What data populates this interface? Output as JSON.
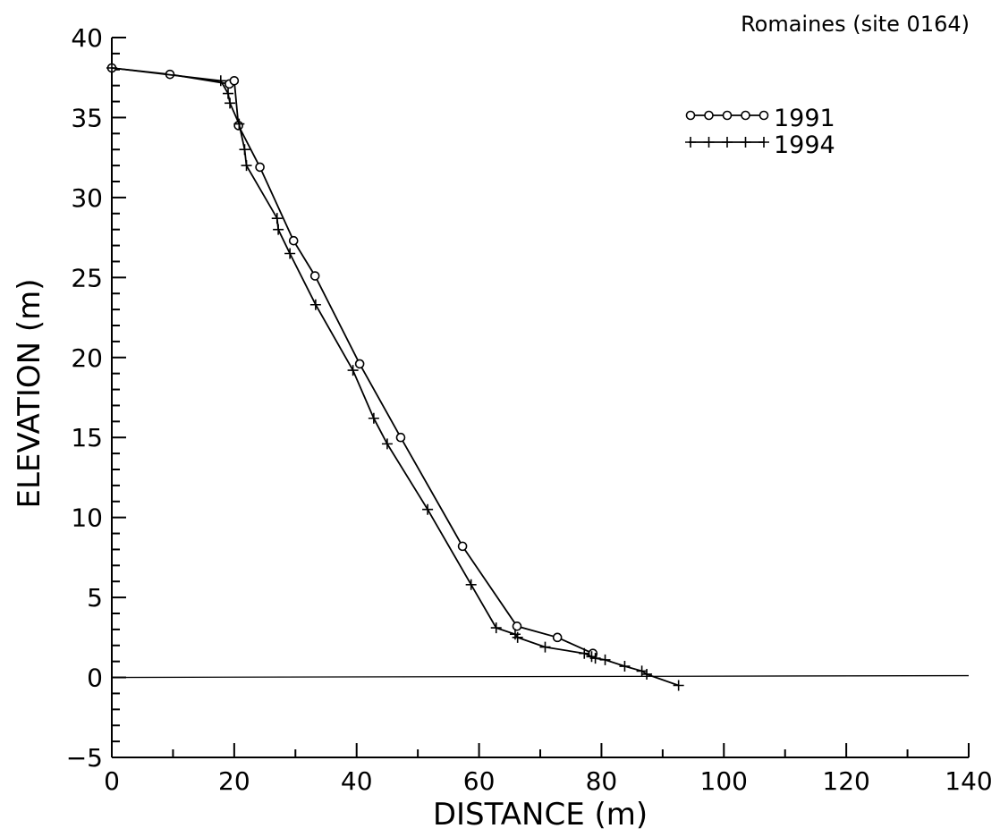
{
  "chart_data": {
    "type": "line",
    "title": "Romaines  (site  0164)",
    "xlabel": "DISTANCE  (m)",
    "ylabel": "ELEVATION  (m)",
    "xlim": [
      0,
      140
    ],
    "ylim": [
      -5,
      40
    ],
    "x_ticks": [
      0,
      20,
      40,
      60,
      80,
      100,
      120,
      140
    ],
    "y_ticks": [
      -5,
      0,
      5,
      10,
      15,
      20,
      25,
      30,
      35,
      40
    ],
    "legend_position": "top-right",
    "reference_line_y": 0,
    "series": [
      {
        "name": "1991",
        "marker": "circle",
        "points": [
          [
            0,
            38.1
          ],
          [
            9.5,
            37.7
          ],
          [
            19.2,
            37.1
          ],
          [
            20.0,
            37.3
          ],
          [
            20.7,
            34.5
          ],
          [
            24.2,
            31.9
          ],
          [
            29.7,
            27.3
          ],
          [
            33.2,
            25.1
          ],
          [
            40.5,
            19.6
          ],
          [
            47.2,
            15.0
          ],
          [
            57.3,
            8.2
          ],
          [
            66.2,
            3.2
          ],
          [
            72.8,
            2.5
          ],
          [
            78.6,
            1.5
          ]
        ]
      },
      {
        "name": "1994",
        "marker": "plus",
        "points": [
          [
            0,
            38.1
          ],
          [
            17.8,
            37.3
          ],
          [
            19.0,
            36.5
          ],
          [
            19.3,
            35.9
          ],
          [
            20.8,
            34.6
          ],
          [
            21.7,
            33.0
          ],
          [
            22.0,
            32.0
          ],
          [
            27.0,
            28.7
          ],
          [
            27.2,
            28.0
          ],
          [
            29.1,
            26.5
          ],
          [
            33.3,
            23.3
          ],
          [
            39.4,
            19.2
          ],
          [
            42.8,
            16.2
          ],
          [
            45.0,
            14.6
          ],
          [
            51.6,
            10.5
          ],
          [
            58.7,
            5.8
          ],
          [
            62.8,
            3.1
          ],
          [
            65.9,
            2.7
          ],
          [
            66.3,
            2.5
          ],
          [
            70.8,
            1.9
          ],
          [
            77.2,
            1.5
          ],
          [
            78.4,
            1.3
          ],
          [
            79.0,
            1.2
          ],
          [
            80.6,
            1.1
          ],
          [
            83.8,
            0.7
          ],
          [
            86.6,
            0.4
          ],
          [
            87.4,
            0.2
          ],
          [
            92.6,
            -0.5
          ]
        ]
      }
    ]
  }
}
